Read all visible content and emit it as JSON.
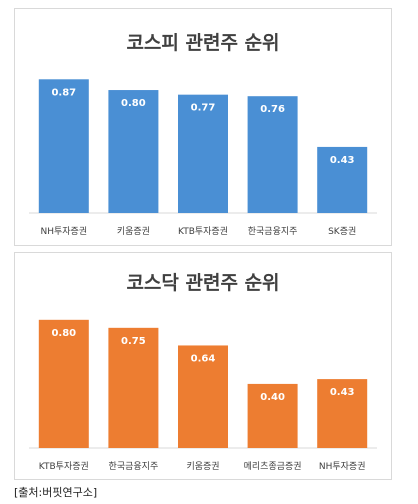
{
  "chart_data": [
    {
      "type": "bar",
      "title": "코스피 관련주 순위",
      "categories": [
        "NH투자증권",
        "키움증권",
        "KTB투자증권",
        "한국금융지주",
        "SK증권"
      ],
      "values": [
        0.87,
        0.8,
        0.77,
        0.76,
        0.43
      ],
      "value_labels": [
        "0.87",
        "0.80",
        "0.77",
        "0.76",
        "0.43"
      ],
      "ylim": [
        0,
        0.95
      ],
      "grid": false,
      "bar_color": "#4a8fd4"
    },
    {
      "type": "bar",
      "title": "코스닥 관련주 순위",
      "categories": [
        "KTB투자증권",
        "한국금융지주",
        "키움증권",
        "메리츠종금증권",
        "NH투자증권"
      ],
      "values": [
        0.8,
        0.75,
        0.64,
        0.4,
        0.43
      ],
      "value_labels": [
        "0.80",
        "0.75",
        "0.64",
        "0.40",
        "0.43"
      ],
      "ylim": [
        0,
        0.88
      ],
      "grid": false,
      "bar_color": "#ed7d31"
    }
  ],
  "source": "[출처:버핏연구소]"
}
